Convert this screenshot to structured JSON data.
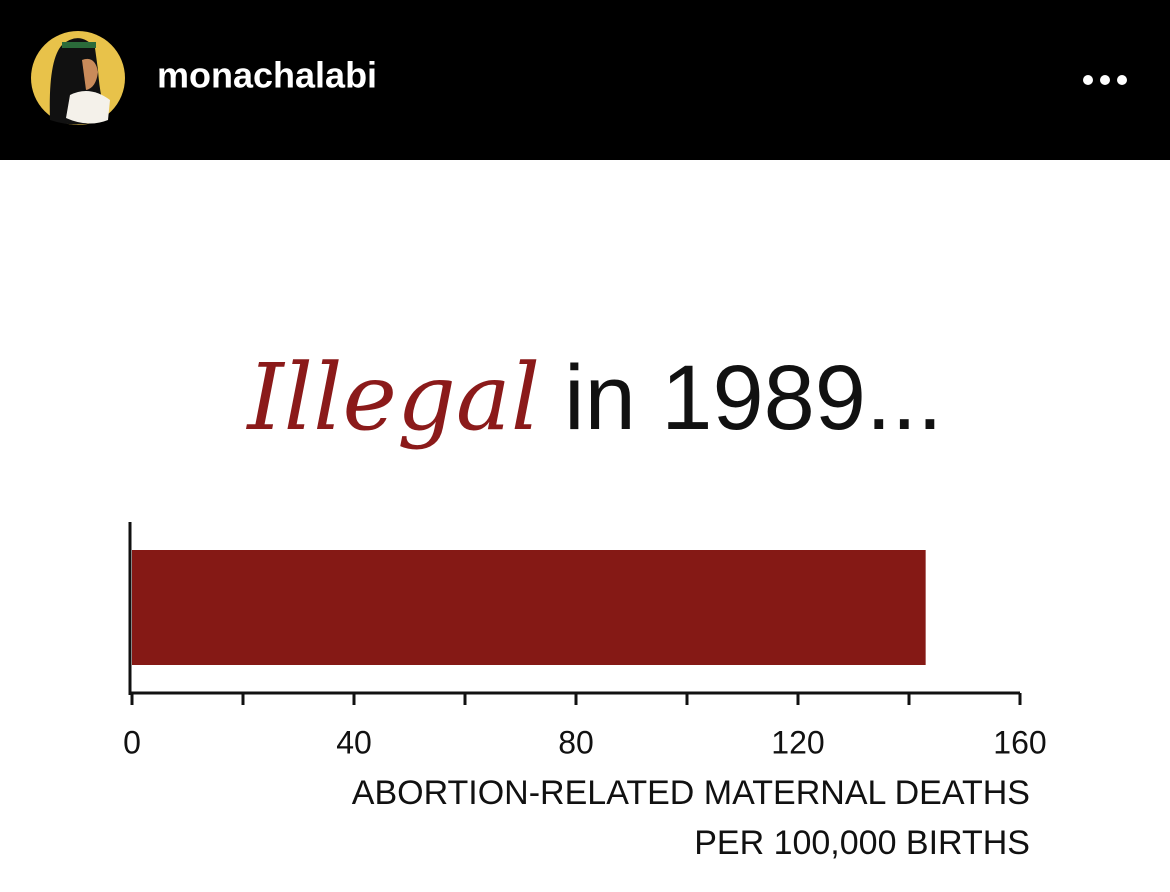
{
  "header": {
    "username": "monachalabi"
  },
  "chart_data": {
    "type": "bar",
    "orientation": "horizontal",
    "title": [
      {
        "text": "Illegal",
        "color": "#8b1a1a"
      },
      {
        "text": "in 1989...",
        "color": "#111111"
      }
    ],
    "categories": [
      null
    ],
    "values": [
      143
    ],
    "color": "#851915",
    "xlim": [
      0,
      160
    ],
    "xticks": [
      0,
      40,
      80,
      120,
      160
    ],
    "xminor_ticks": [
      20,
      60,
      100,
      140
    ],
    "xlabel_lines": [
      "ABORTION-RELATED MATERNAL DEATHS",
      "PER 100,000 BIRTHS"
    ]
  }
}
